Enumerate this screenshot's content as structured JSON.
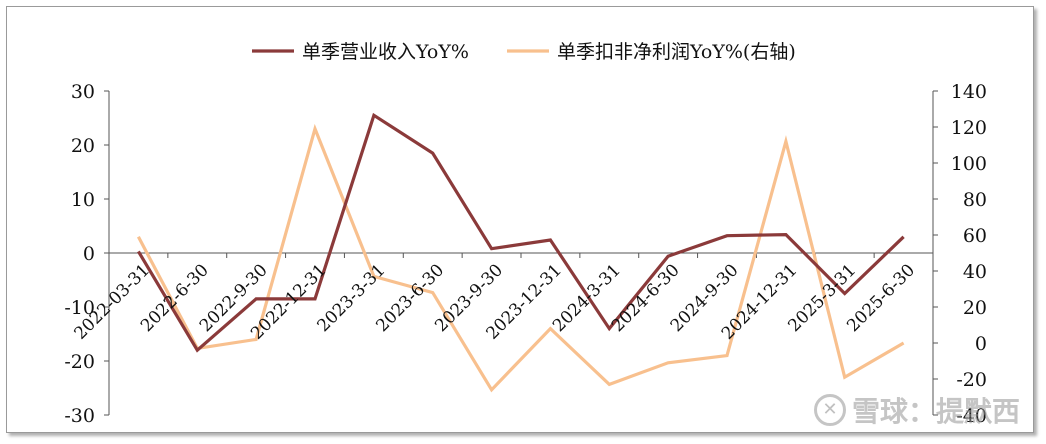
{
  "chart_data": {
    "type": "line",
    "categories": [
      "2022-03-31",
      "2022-6-30",
      "2022-9-30",
      "2022-12-31",
      "2023-3-31",
      "2023-6-30",
      "2023-9-30",
      "2023-12-31",
      "2024-3-31",
      "2024-6-30",
      "2024-9-30",
      "2024-12-31",
      "2025-3-31",
      "2025-6-30"
    ],
    "series": [
      {
        "name": "单季营业收入YoY%",
        "axis": "left",
        "color": "#8B3A3A",
        "values": [
          0.3,
          -18.0,
          -8.5,
          -8.5,
          25.5,
          18.5,
          0.8,
          2.4,
          -14.0,
          -0.6,
          3.2,
          3.4,
          -7.5,
          3.0
        ]
      },
      {
        "name": "单季扣非净利润YoY%(右轴)",
        "axis": "right",
        "color": "#F8C08E",
        "values": [
          59,
          -3,
          2,
          119,
          37,
          28,
          -26,
          8,
          -23,
          -11,
          -7,
          112,
          -19,
          0
        ]
      }
    ],
    "yleft": {
      "min": -30,
      "max": 30,
      "step": 10,
      "ticks": [
        "-30",
        "-20",
        "-10",
        "0",
        "10",
        "20",
        "30"
      ]
    },
    "yright": {
      "min": -40,
      "max": 140,
      "step": 20,
      "ticks": [
        "-40",
        "-20",
        "0",
        "20",
        "40",
        "60",
        "80",
        "100",
        "120",
        "140"
      ]
    },
    "legend_position": "top"
  },
  "watermark": {
    "logo": "✕",
    "text": "雪球：提默西"
  }
}
